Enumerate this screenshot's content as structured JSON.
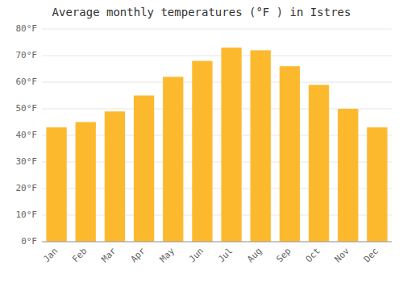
{
  "chart_data": {
    "type": "bar",
    "title": "Average monthly temperatures (°F ) in Istres",
    "categories": [
      "Jan",
      "Feb",
      "Mar",
      "Apr",
      "May",
      "Jun",
      "Jul",
      "Aug",
      "Sep",
      "Oct",
      "Nov",
      "Dec"
    ],
    "values": [
      43,
      45,
      49,
      55,
      62,
      68,
      73,
      72,
      66,
      59,
      50,
      43
    ],
    "color": "#FDB92E",
    "ylim": [
      0,
      80
    ],
    "yticks": [
      {
        "value": 0,
        "label": "0°F"
      },
      {
        "value": 10,
        "label": "10°F"
      },
      {
        "value": 20,
        "label": "20°F"
      },
      {
        "value": 30,
        "label": "30°F"
      },
      {
        "value": 40,
        "label": "40°F"
      },
      {
        "value": 50,
        "label": "50°F"
      },
      {
        "value": 60,
        "label": "60°F"
      },
      {
        "value": 70,
        "label": "70°F"
      },
      {
        "value": 80,
        "label": "80°F"
      }
    ],
    "grid": true
  }
}
